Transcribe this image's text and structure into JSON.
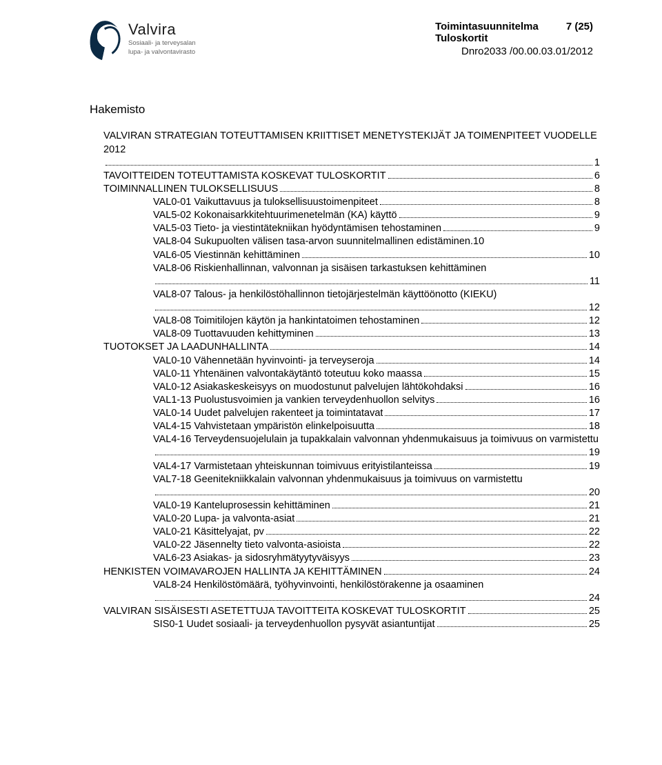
{
  "header": {
    "logo_name": "Valvira",
    "logo_sub_line1": "Sosiaali- ja terveysalan",
    "logo_sub_line2": "lupa- ja valvontavirasto",
    "title_line1": "Toimintasuunnitelma",
    "page_indicator": "7 (25)",
    "title_line2": "Tuloskortit",
    "dnro": "Dnro2033 /00.00.03.01/2012"
  },
  "hakemisto_label": "Hakemisto",
  "toc": [
    {
      "level": 0,
      "caps": true,
      "text": "VALVIRAN STRATEGIAN TOTEUTTAMISEN KRIITTISET MENETYSTEKIJÄT JA TOIMENPITEET VUODELLE 2012",
      "page": "1",
      "wrap": true
    },
    {
      "level": 0,
      "caps": true,
      "text": "TAVOITTEIDEN TOTEUTTAMISTA KOSKEVAT TULOSKORTIT",
      "page": "6"
    },
    {
      "level": 0,
      "caps": true,
      "text": "TOIMINNALLINEN TULOKSELLISUUS",
      "page": "8"
    },
    {
      "level": 1,
      "text": "VAL0-01 Vaikuttavuus ja tuloksellisuustoimenpiteet",
      "page": "8"
    },
    {
      "level": 1,
      "text": "VAL5-02 Kokonaisarkkitehtuurimenetelmän (KA) käyttö",
      "page": "9"
    },
    {
      "level": 1,
      "text": "VAL5-03 Tieto- ja viestintätekniikan hyödyntämisen tehostaminen",
      "page": "9"
    },
    {
      "level": 1,
      "text": "VAL8-04 Sukupuolten välisen tasa-arvon suunnitelmallinen edistäminen.",
      "page": "10",
      "tight": true
    },
    {
      "level": 1,
      "text": "VAL6-05 Viestinnän kehittäminen",
      "page": "10"
    },
    {
      "level": 1,
      "text": "VAL8-06 Riskienhallinnan, valvonnan ja sisäisen tarkastuksen kehittäminen",
      "page": "11",
      "wrap": true
    },
    {
      "level": 1,
      "text": "VAL8-07 Talous- ja henkilöstöhallinnon tietojärjestelmän käyttöönotto (KIEKU)",
      "page": "12",
      "wrap": true
    },
    {
      "level": 1,
      "text": "VAL8-08 Toimitilojen käytön ja hankintatoimen tehostaminen",
      "page": "12"
    },
    {
      "level": 1,
      "text": "VAL8-09 Tuottavuuden kehittyminen",
      "page": "13"
    },
    {
      "level": 0,
      "caps": true,
      "text": "TUOTOKSET JA LAADUNHALLINTA",
      "page": "14"
    },
    {
      "level": 1,
      "text": "VAL0-10 Vähennetään hyvinvointi- ja terveyseroja",
      "page": "14"
    },
    {
      "level": 1,
      "text": "VAL0-11 Yhtenäinen valvontakäytäntö toteutuu koko maassa",
      "page": "15"
    },
    {
      "level": 1,
      "text": "VAL0-12 Asiakaskeskeisyys on muodostunut palvelujen lähtökohdaksi",
      "page": "16"
    },
    {
      "level": 1,
      "text": "VAL1-13 Puolustusvoimien ja vankien terveydenhuollon selvitys",
      "page": "16"
    },
    {
      "level": 1,
      "text": "VAL0-14  Uudet palvelujen rakenteet ja toimintatavat",
      "page": "17"
    },
    {
      "level": 1,
      "text": "VAL4-15  Vahvistetaan ympäristön elinkelpoisuutta",
      "page": "18"
    },
    {
      "level": 1,
      "text": "VAL4-16  Terveydensuojelulain ja tupakkalain valvonnan yhdenmukaisuus ja toimivuus on varmistettu",
      "page": "19",
      "wrap": true
    },
    {
      "level": 1,
      "text": "VAL4-17 Varmistetaan yhteiskunnan toimivuus erityistilanteissa",
      "page": "19"
    },
    {
      "level": 1,
      "text": "VAL7-18 Geenitekniikkalain valvonnan yhdenmukaisuus ja toimivuus on varmistettu",
      "page": "20",
      "wrap": true
    },
    {
      "level": 1,
      "text": "VAL0-19 Kanteluprosessin kehittäminen",
      "page": "21"
    },
    {
      "level": 1,
      "text": "VAL0-20 Lupa- ja valvonta-asiat",
      "page": "21"
    },
    {
      "level": 1,
      "text": "VAL0-21 Käsittelyajat, pv",
      "page": "22"
    },
    {
      "level": 1,
      "text": "VAL0-22 Jäsennelty tieto valvonta-asioista",
      "page": "22"
    },
    {
      "level": 1,
      "text": "VAL6-23 Asiakas- ja sidosryhmätyytyväisyys",
      "page": "23"
    },
    {
      "level": 0,
      "caps": true,
      "text": "HENKISTEN VOIMAVAROJEN HALLINTA JA KEHITTÄMINEN",
      "page": "24"
    },
    {
      "level": 1,
      "text": "VAL8-24 Henkilöstömäärä, työhyvinvointi, henkilöstörakenne ja osaaminen",
      "page": "24",
      "wrap_trail": true
    },
    {
      "level": 0,
      "caps": true,
      "text": "VALVIRAN SISÄISESTI ASETETTUJA TAVOITTEITA KOSKEVAT TULOSKORTIT",
      "page": "25"
    },
    {
      "level": 1,
      "text": "SIS0-1 Uudet sosiaali- ja terveydenhuollon pysyvät asiantuntijat",
      "page": "25"
    }
  ]
}
